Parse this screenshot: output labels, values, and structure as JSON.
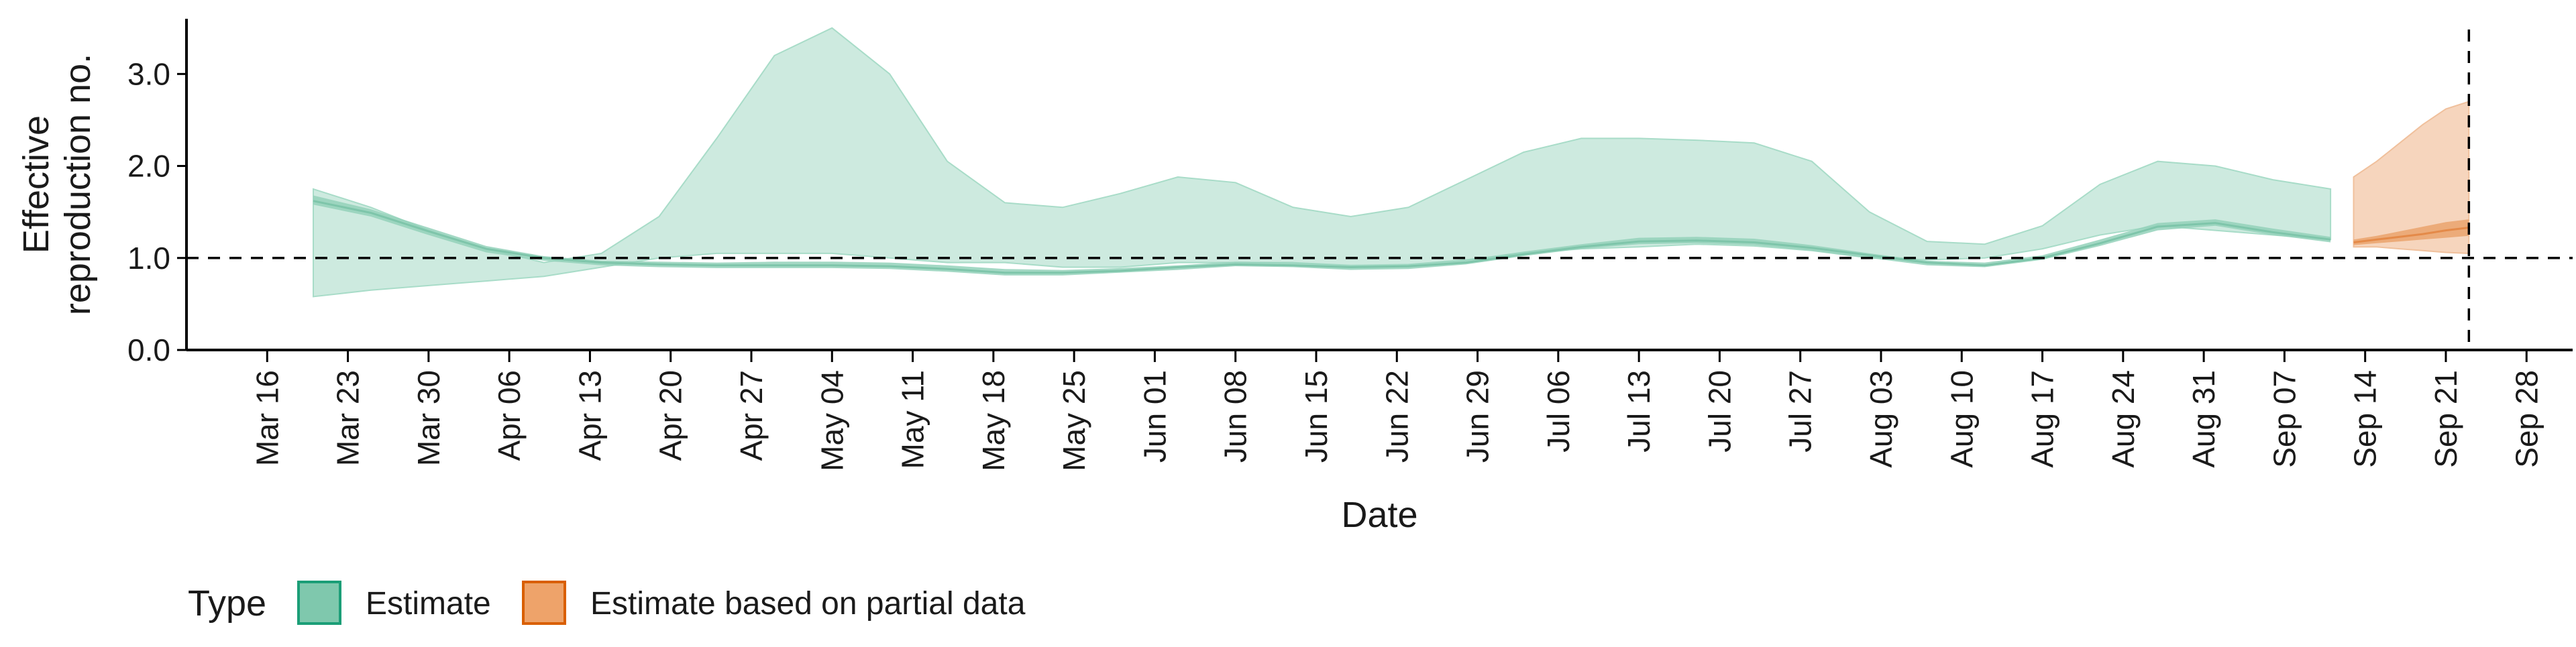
{
  "chart_data": {
    "type": "area",
    "xlabel": "Date",
    "ylabel_lines": [
      "Effective",
      "reproduction no."
    ],
    "ylim": [
      0,
      3.6
    ],
    "y_ticks": [
      0.0,
      1.0,
      2.0,
      3.0
    ],
    "y_tick_labels": [
      "0.0",
      "1.0",
      "2.0",
      "3.0"
    ],
    "x_ticks": [
      "2020-03-16",
      "2020-03-23",
      "2020-03-30",
      "2020-04-06",
      "2020-04-13",
      "2020-04-20",
      "2020-04-27",
      "2020-05-04",
      "2020-05-11",
      "2020-05-18",
      "2020-05-25",
      "2020-06-01",
      "2020-06-08",
      "2020-06-15",
      "2020-06-22",
      "2020-06-29",
      "2020-07-06",
      "2020-07-13",
      "2020-07-20",
      "2020-07-27",
      "2020-08-03",
      "2020-08-10",
      "2020-08-17",
      "2020-08-24",
      "2020-08-31",
      "2020-09-07",
      "2020-09-14",
      "2020-09-21",
      "2020-09-28"
    ],
    "x_tick_labels": [
      "Mar 16",
      "Mar 23",
      "Mar 30",
      "Apr 06",
      "Apr 13",
      "Apr 20",
      "Apr 27",
      "May 04",
      "May 11",
      "May 18",
      "May 25",
      "Jun 01",
      "Jun 08",
      "Jun 15",
      "Jun 22",
      "Jun 29",
      "Jul 06",
      "Jul 13",
      "Jul 20",
      "Jul 27",
      "Aug 03",
      "Aug 10",
      "Aug 17",
      "Aug 24",
      "Aug 31",
      "Sep 07",
      "Sep 14",
      "Sep 21",
      "Sep 28"
    ],
    "xlim": [
      "2020-03-09",
      "2020-10-02"
    ],
    "reference_lines": {
      "hline_y": 1.0,
      "vline_x": "2020-09-23"
    },
    "legend": {
      "title": "Type",
      "position": "bottom-left",
      "items": [
        {
          "label": "Estimate",
          "fill": "#7fc8ad",
          "stroke": "#1b9e77"
        },
        {
          "label": "Estimate based on partial data",
          "fill": "#eea36a",
          "stroke": "#d95f02"
        }
      ]
    },
    "series": [
      {
        "name": "Estimate",
        "color": "#1b9e77",
        "x": [
          "2020-03-20",
          "2020-03-25",
          "2020-03-30",
          "2020-04-04",
          "2020-04-09",
          "2020-04-14",
          "2020-04-19",
          "2020-04-24",
          "2020-04-29",
          "2020-05-04",
          "2020-05-09",
          "2020-05-14",
          "2020-05-19",
          "2020-05-24",
          "2020-05-29",
          "2020-06-03",
          "2020-06-08",
          "2020-06-13",
          "2020-06-18",
          "2020-06-23",
          "2020-06-28",
          "2020-07-03",
          "2020-07-08",
          "2020-07-13",
          "2020-07-18",
          "2020-07-23",
          "2020-07-28",
          "2020-08-02",
          "2020-08-07",
          "2020-08-12",
          "2020-08-17",
          "2020-08-22",
          "2020-08-27",
          "2020-09-01",
          "2020-09-06",
          "2020-09-11"
        ],
        "outer_low": [
          0.58,
          0.65,
          0.7,
          0.75,
          0.8,
          0.9,
          1.0,
          1.05,
          1.05,
          1.05,
          1.0,
          0.95,
          0.95,
          0.9,
          0.9,
          0.95,
          0.95,
          0.95,
          0.92,
          0.93,
          0.98,
          1.05,
          1.1,
          1.12,
          1.15,
          1.13,
          1.08,
          1.0,
          0.98,
          1.0,
          1.1,
          1.25,
          1.35,
          1.3,
          1.25,
          1.2
        ],
        "outer_high": [
          1.75,
          1.55,
          1.3,
          1.1,
          0.95,
          1.05,
          1.45,
          2.3,
          3.2,
          3.5,
          3.0,
          2.05,
          1.6,
          1.55,
          1.7,
          1.88,
          1.82,
          1.55,
          1.45,
          1.55,
          1.85,
          2.15,
          2.3,
          2.3,
          2.28,
          2.25,
          2.05,
          1.5,
          1.18,
          1.15,
          1.35,
          1.8,
          2.05,
          2.0,
          1.85,
          1.75
        ],
        "inner_low": [
          1.58,
          1.45,
          1.25,
          1.06,
          0.97,
          0.92,
          0.9,
          0.89,
          0.89,
          0.89,
          0.88,
          0.85,
          0.81,
          0.81,
          0.84,
          0.87,
          0.91,
          0.9,
          0.87,
          0.88,
          0.93,
          1.02,
          1.1,
          1.15,
          1.16,
          1.14,
          1.08,
          1.0,
          0.92,
          0.9,
          0.98,
          1.13,
          1.3,
          1.35,
          1.25,
          1.17
        ],
        "inner_high": [
          1.68,
          1.53,
          1.33,
          1.13,
          1.02,
          0.97,
          0.96,
          0.95,
          0.96,
          0.96,
          0.95,
          0.92,
          0.88,
          0.87,
          0.89,
          0.92,
          0.96,
          0.95,
          0.92,
          0.93,
          0.98,
          1.07,
          1.15,
          1.22,
          1.23,
          1.21,
          1.14,
          1.05,
          0.97,
          0.95,
          1.03,
          1.2,
          1.38,
          1.42,
          1.32,
          1.23
        ],
        "median": [
          1.62,
          1.49,
          1.29,
          1.1,
          1.0,
          0.95,
          0.93,
          0.92,
          0.92,
          0.92,
          0.91,
          0.88,
          0.84,
          0.84,
          0.86,
          0.9,
          0.93,
          0.92,
          0.9,
          0.91,
          0.95,
          1.04,
          1.12,
          1.18,
          1.19,
          1.17,
          1.11,
          1.03,
          0.95,
          0.92,
          1.0,
          1.16,
          1.34,
          1.38,
          1.28,
          1.2
        ]
      },
      {
        "name": "Estimate based on partial data",
        "color": "#d95f02",
        "x": [
          "2020-09-13",
          "2020-09-15",
          "2020-09-17",
          "2020-09-19",
          "2020-09-21",
          "2020-09-23"
        ],
        "outer_low": [
          1.12,
          1.12,
          1.1,
          1.08,
          1.06,
          1.05
        ],
        "outer_high": [
          1.88,
          2.05,
          2.25,
          2.45,
          2.62,
          2.7
        ],
        "inner_low": [
          1.14,
          1.16,
          1.18,
          1.2,
          1.22,
          1.24
        ],
        "inner_high": [
          1.2,
          1.24,
          1.29,
          1.34,
          1.39,
          1.42
        ],
        "median": [
          1.17,
          1.2,
          1.23,
          1.26,
          1.3,
          1.33
        ]
      }
    ]
  }
}
